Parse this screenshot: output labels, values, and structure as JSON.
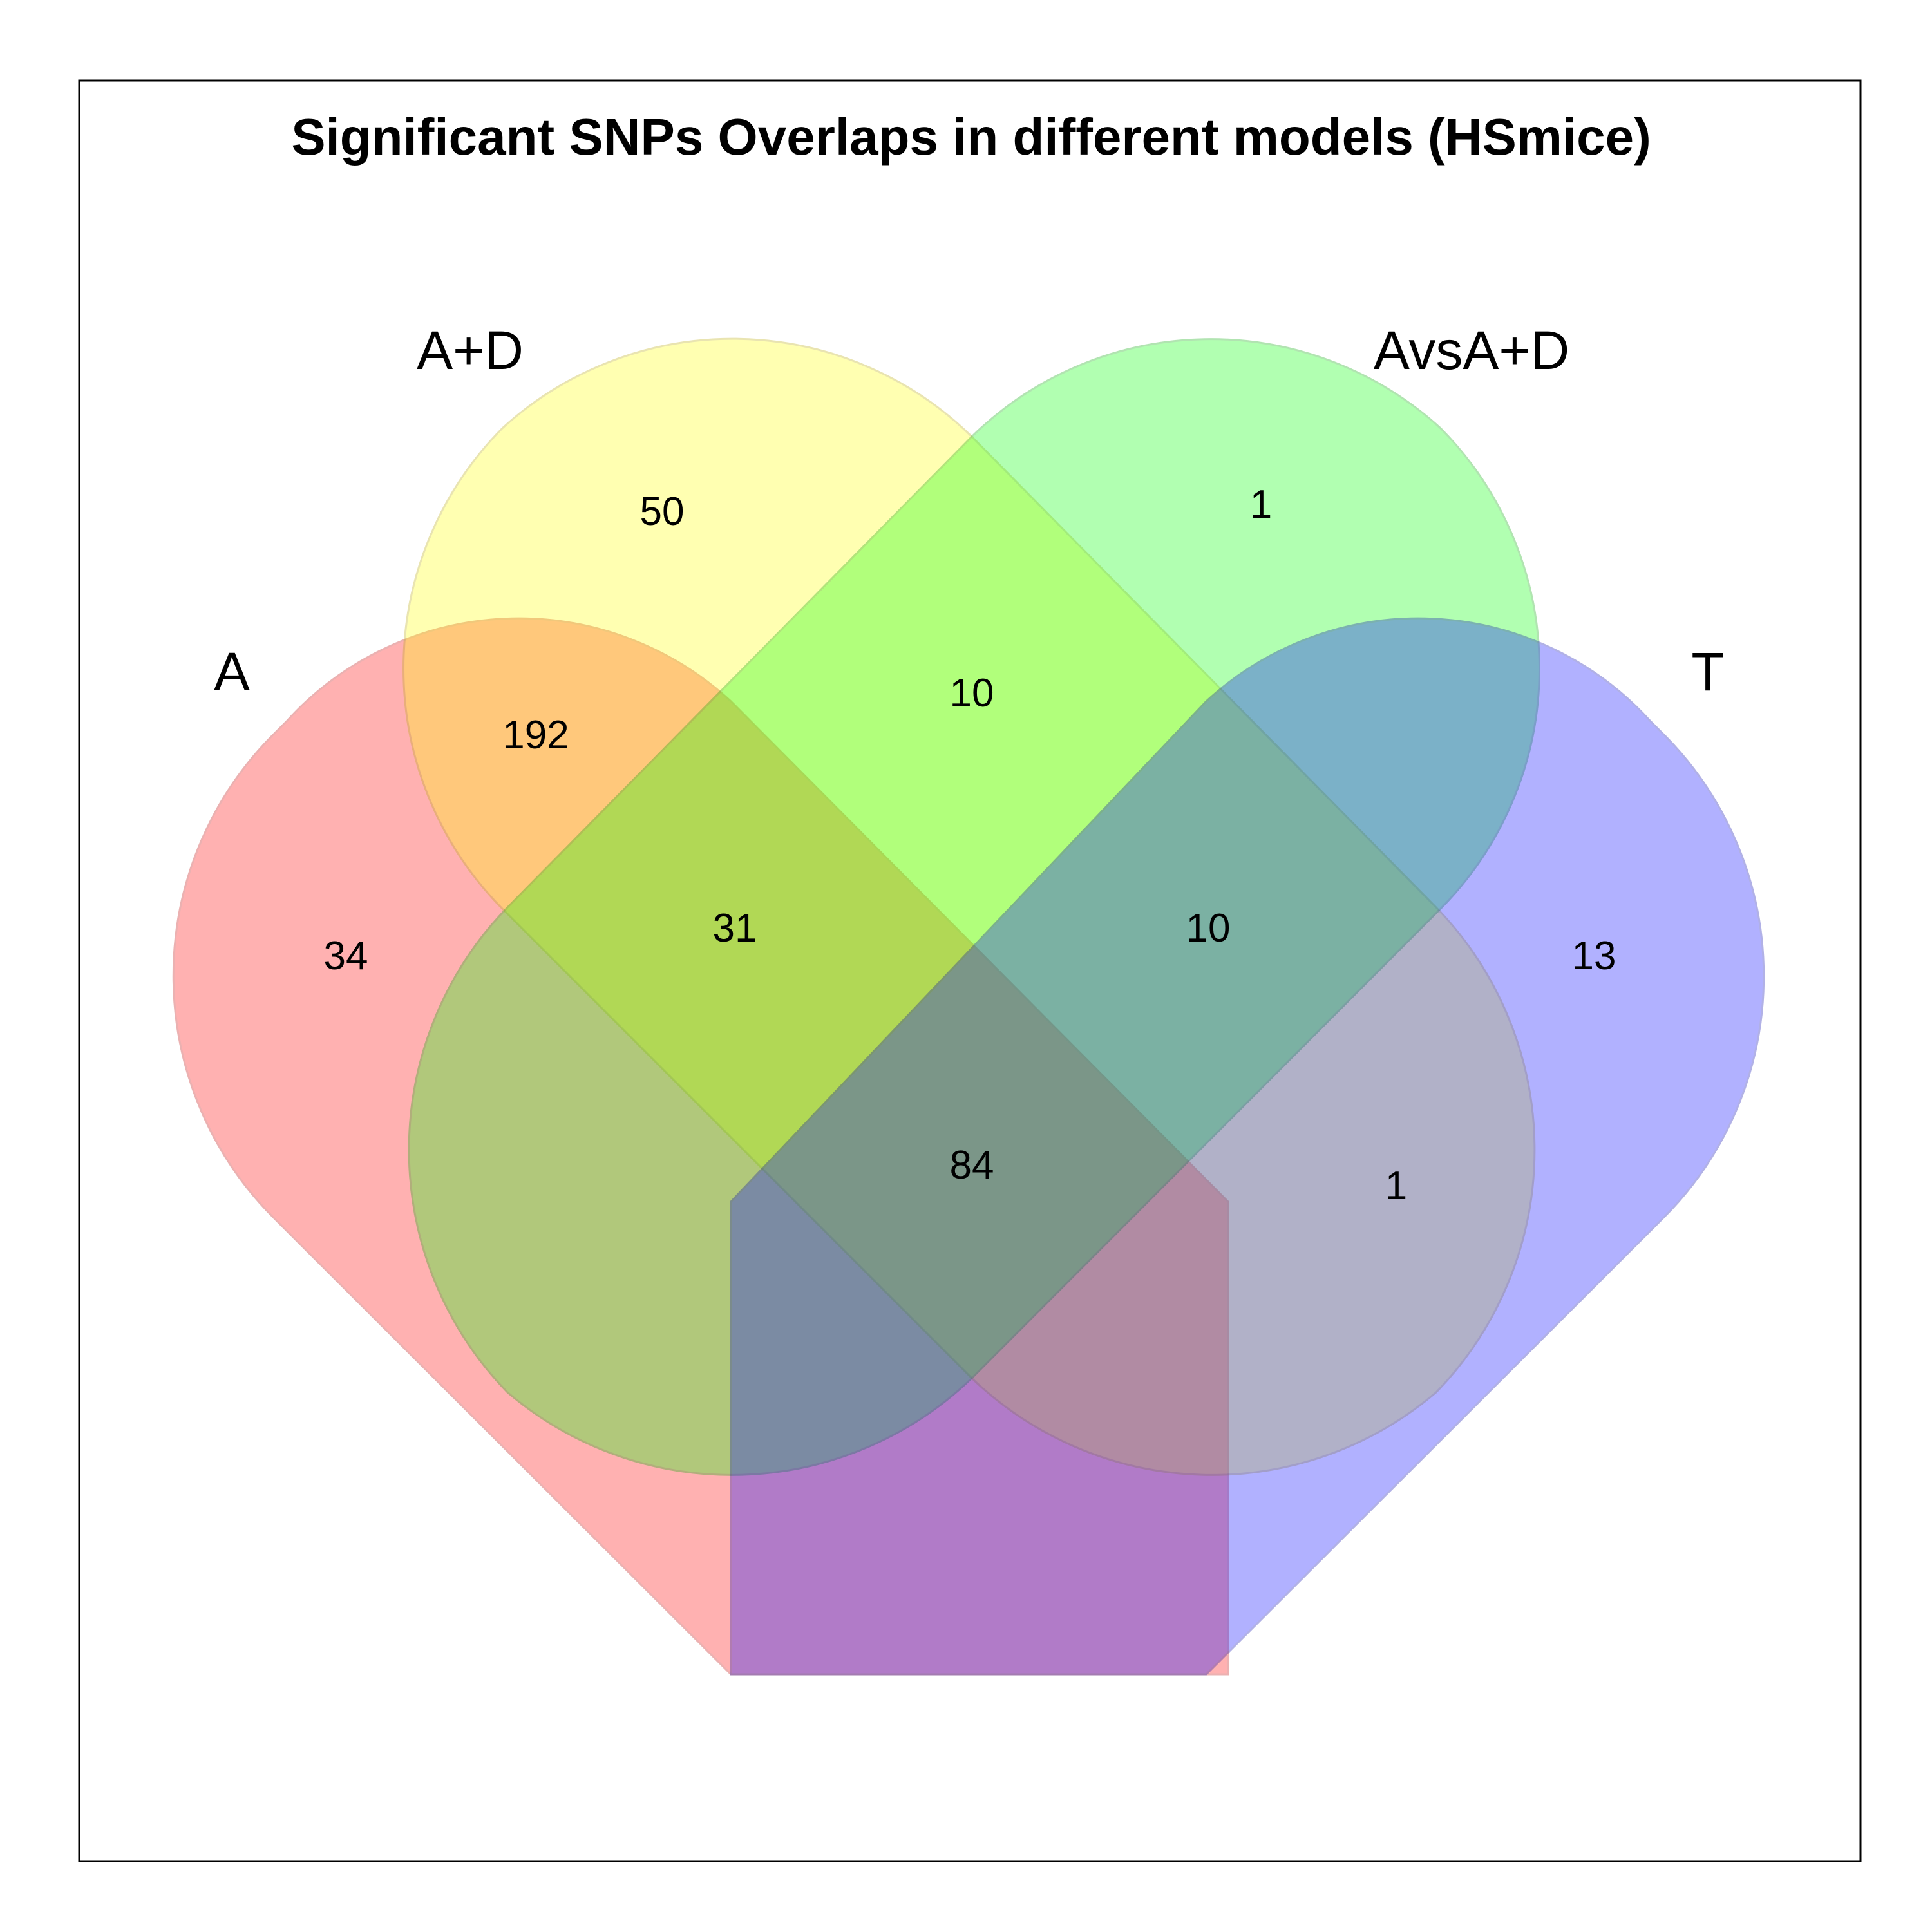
{
  "title": "Significant SNPs Overlaps in different models (HSmice)",
  "sets": [
    {
      "key": "A",
      "label": "A",
      "fill": "#ff0000",
      "stroke": "#c00000"
    },
    {
      "key": "AD",
      "label": "A+D",
      "fill": "#ffff00",
      "stroke": "#b8a800"
    },
    {
      "key": "AvsAD",
      "label": "AvsA+D",
      "fill": "#00ff00",
      "stroke": "#00a800"
    },
    {
      "key": "T",
      "label": "T",
      "fill": "#0000ff",
      "stroke": "#0000b0"
    }
  ],
  "regions": [
    {
      "sets": [
        "AD"
      ],
      "count": "50"
    },
    {
      "sets": [
        "AvsAD"
      ],
      "count": "1"
    },
    {
      "sets": [
        "A",
        "AD"
      ],
      "count": "192"
    },
    {
      "sets": [
        "AD",
        "AvsAD"
      ],
      "count": "10"
    },
    {
      "sets": [
        "A"
      ],
      "count": "34"
    },
    {
      "sets": [
        "A",
        "AD",
        "AvsAD"
      ],
      "count": "31"
    },
    {
      "sets": [
        "AD",
        "AvsAD",
        "T"
      ],
      "count": "10"
    },
    {
      "sets": [
        "T"
      ],
      "count": "13"
    },
    {
      "sets": [
        "A",
        "AD",
        "AvsAD",
        "T"
      ],
      "count": "84"
    },
    {
      "sets": [
        "AD",
        "T"
      ],
      "count": "1"
    }
  ]
}
